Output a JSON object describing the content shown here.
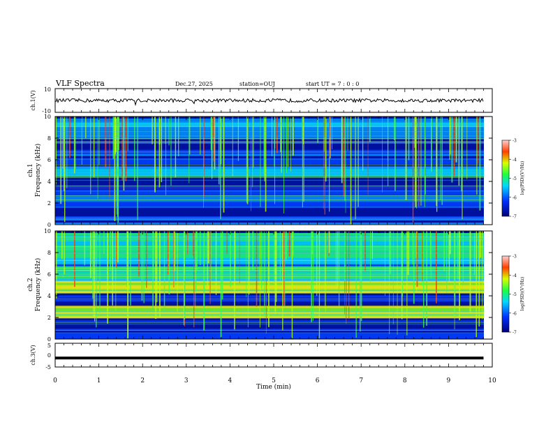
{
  "header": {
    "title": "VLF Spectra",
    "date": "Dec.27, 2025",
    "station": "station=OUJ",
    "start_ut": "start  UT =   7 : 0  : 0"
  },
  "chart_data": [
    {
      "type": "line",
      "name": "ch1-waveform",
      "ylabel": "ch.1(V)",
      "ylim": [
        -10,
        10
      ],
      "yticks": [
        "10",
        "-10"
      ],
      "xlim": [
        0,
        10
      ],
      "baseline": 0
    },
    {
      "type": "heatmap",
      "name": "ch1-spectrogram",
      "ylabel_channel": "ch.1",
      "ylabel": "Frequency (kHz)",
      "ylim": [
        0,
        10
      ],
      "yticks": [
        "0",
        "2",
        "4",
        "6",
        "8",
        "10"
      ],
      "xlim": [
        0,
        10
      ],
      "colorbar": {
        "label": "log(PSD)(V²/Hz)",
        "range": [
          -7,
          -3
        ],
        "ticks": [
          "-3",
          "-4",
          "-5",
          "-6",
          "-7"
        ]
      }
    },
    {
      "type": "heatmap",
      "name": "ch2-spectrogram",
      "ylabel_channel": "ch.2",
      "ylabel": "Frequency (kHz)",
      "ylim": [
        0,
        10
      ],
      "yticks": [
        "0",
        "2",
        "4",
        "6",
        "8",
        "10"
      ],
      "xlim": [
        0,
        10
      ],
      "colorbar": {
        "label": "log(PSD)(V²/Hz)",
        "range": [
          -7,
          -3
        ],
        "ticks": [
          "-3",
          "-4",
          "-5",
          "-6",
          "-7"
        ]
      }
    },
    {
      "type": "line",
      "name": "ch3-waveform",
      "ylabel": "ch.3(V)",
      "ylim": [
        -5,
        5
      ],
      "yticks": [
        "5",
        "0",
        "-5"
      ],
      "xlim": [
        0,
        10
      ],
      "x": [
        0,
        9.8
      ],
      "y": [
        -1.2,
        -1.2
      ]
    }
  ],
  "xaxis": {
    "label": "Time (min)",
    "ticks": [
      "0",
      "1",
      "2",
      "3",
      "4",
      "5",
      "6",
      "7",
      "8",
      "9",
      "10"
    ]
  },
  "colors": {
    "ink": "#000000",
    "background": "#ffffff"
  }
}
